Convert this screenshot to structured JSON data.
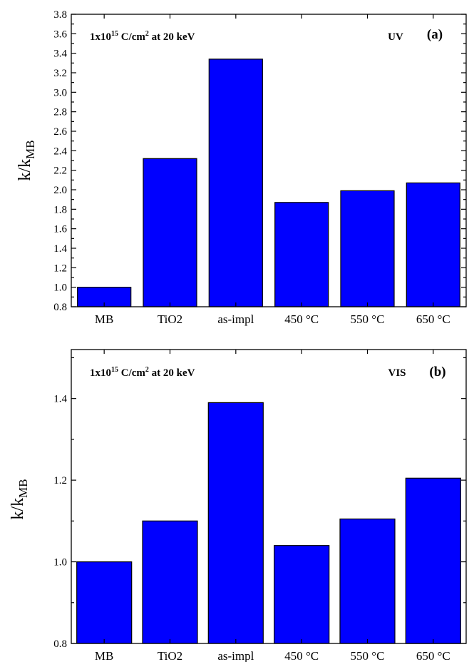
{
  "chart_data": [
    {
      "panel": "(a)",
      "type": "bar",
      "categories": [
        "MB",
        "TiO2",
        "as-impl",
        "450 °C",
        "550 °C",
        "650 °C"
      ],
      "values": [
        1.0,
        2.32,
        3.34,
        1.87,
        1.99,
        2.07
      ],
      "ylabel_main": "k/k",
      "ylabel_sub": "MB",
      "ylim": [
        0.8,
        3.8
      ],
      "yticks": [
        0.8,
        1.0,
        1.2,
        1.4,
        1.6,
        1.8,
        2.0,
        2.2,
        2.4,
        2.6,
        2.8,
        3.0,
        3.2,
        3.4,
        3.6,
        3.8
      ],
      "tick_decimals": 1,
      "annotation_pre": "1x10",
      "annotation_sup": "15",
      "annotation_mid": " C/cm",
      "annotation_sup2": "2",
      "annotation_post": " at 20 keV",
      "light_label": "UV",
      "bar_color": "#0000ff",
      "grid": false
    },
    {
      "panel": "(b)",
      "type": "bar",
      "categories": [
        "MB",
        "TiO2",
        "as-impl",
        "450 °C",
        "550 °C",
        "650 °C"
      ],
      "values": [
        1.0,
        1.1,
        1.39,
        1.04,
        1.105,
        1.205
      ],
      "ylabel_main": "k/k",
      "ylabel_sub": "MB",
      "ylim": [
        0.8,
        1.52
      ],
      "yticks": [
        0.8,
        1.0,
        1.2,
        1.4
      ],
      "tick_decimals": 1,
      "annotation_pre": "1x10",
      "annotation_sup": "15",
      "annotation_mid": " C/cm",
      "annotation_sup2": "2",
      "annotation_post": " at 20 keV",
      "light_label": "VIS",
      "bar_color": "#0000ff",
      "grid": false
    }
  ]
}
